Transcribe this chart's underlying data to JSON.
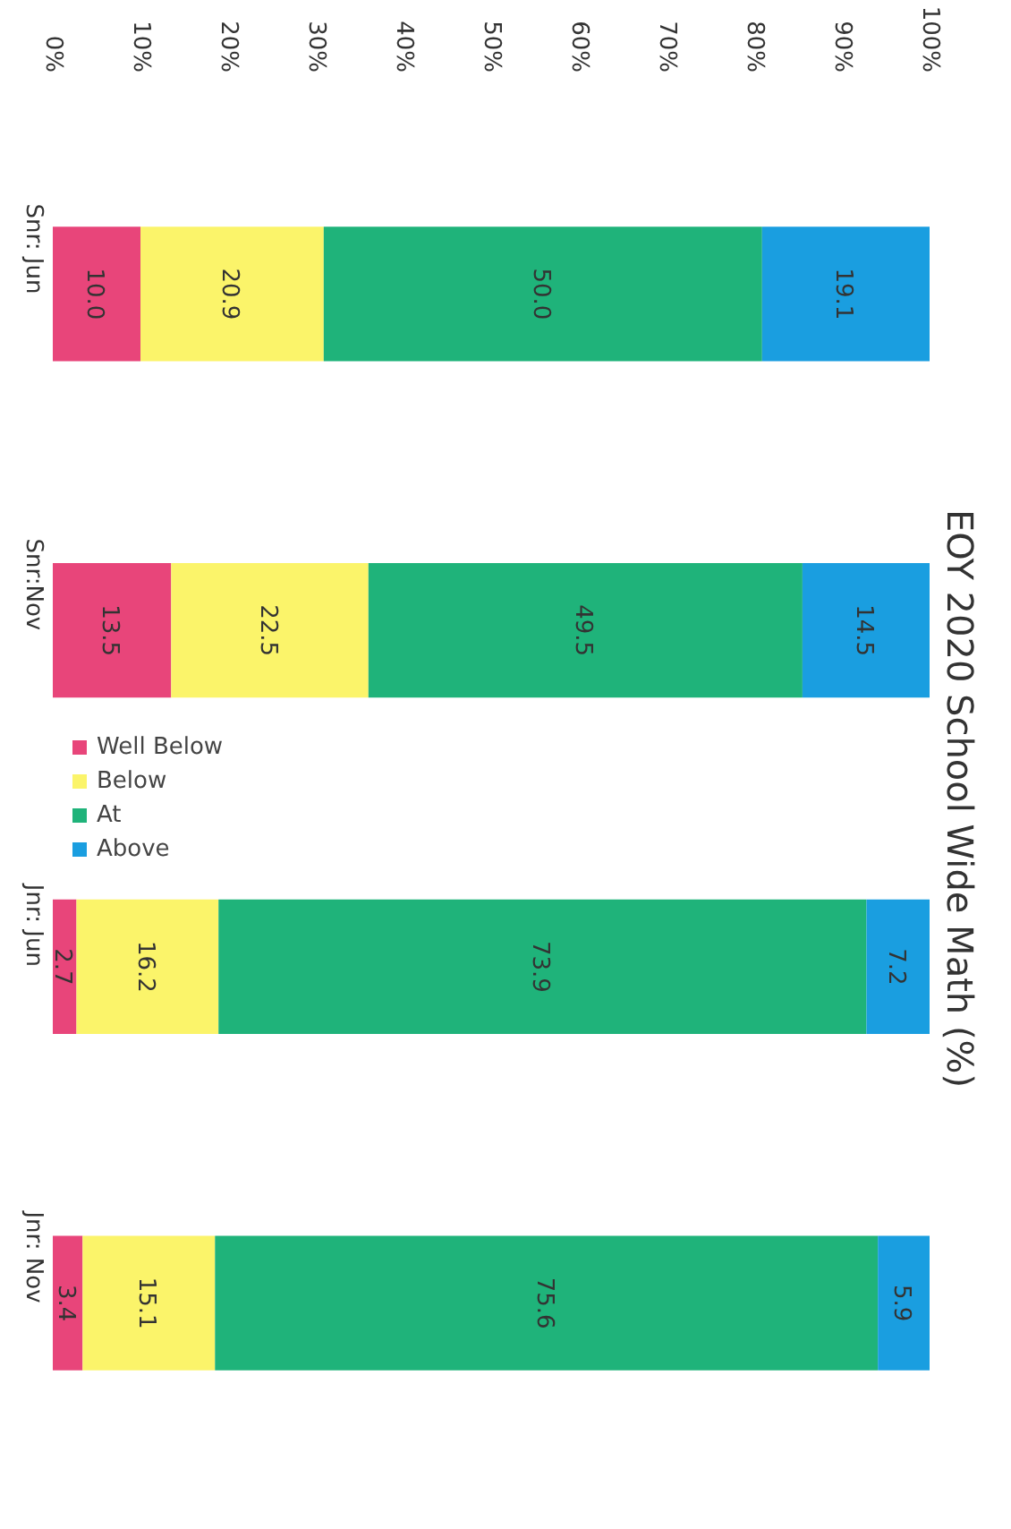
{
  "chart_data": {
    "type": "bar",
    "title": "EOY 2020 School Wide Math (%)",
    "orientation": "horizontal",
    "stacked": true,
    "categories": [
      "Snr: Jun",
      "Snr:Nov",
      "Jnr: Jun",
      "Jnr: Nov"
    ],
    "series": [
      {
        "name": "Well Below",
        "color": "#e8457a",
        "values": [
          10.0,
          13.5,
          2.7,
          3.4
        ],
        "value_labels": [
          "10.0",
          "13.5",
          "2.7",
          "3.4"
        ]
      },
      {
        "name": "Below",
        "color": "#fbf46a",
        "values": [
          20.9,
          22.5,
          16.2,
          15.1
        ],
        "value_labels": [
          "20.9",
          "22.5",
          "16.2",
          "15.1"
        ]
      },
      {
        "name": "At",
        "color": "#1fb37a",
        "values": [
          50.0,
          49.5,
          73.9,
          75.6
        ],
        "value_labels": [
          "50.0",
          "49.5",
          "73.9",
          "75.6"
        ]
      },
      {
        "name": "Above",
        "color": "#1a9ee0",
        "values": [
          19.1,
          14.5,
          7.2,
          5.9
        ],
        "value_labels": [
          "19.1",
          "14.5",
          "7.2",
          "5.9"
        ]
      }
    ],
    "xlim": [
      0,
      100
    ],
    "xticks": [
      {
        "value": 0,
        "label": "0%"
      },
      {
        "value": 10,
        "label": "10%"
      },
      {
        "value": 20,
        "label": "20%"
      },
      {
        "value": 30,
        "label": "30%"
      },
      {
        "value": 40,
        "label": "40%"
      },
      {
        "value": 50,
        "label": "50%"
      },
      {
        "value": 60,
        "label": "60%"
      },
      {
        "value": 70,
        "label": "70%"
      },
      {
        "value": 80,
        "label": "80%"
      },
      {
        "value": 90,
        "label": "90%"
      },
      {
        "value": 100,
        "label": "100%"
      }
    ],
    "grid": false,
    "legend": "left"
  }
}
